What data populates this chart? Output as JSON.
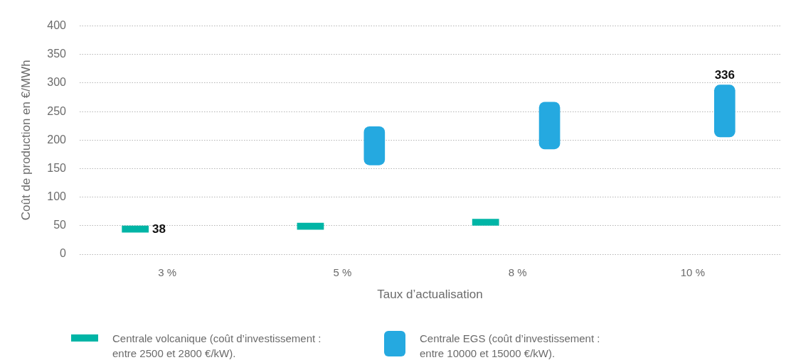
{
  "chart_data": {
    "type": "bar",
    "categories": [
      "3 %",
      "5 %",
      "8 %",
      "10 %"
    ],
    "xlabel": "Taux d’actualisation",
    "ylabel": "Coût de production en €/MWh",
    "ylim": [
      0,
      400
    ],
    "yticks": [
      0,
      50,
      100,
      150,
      200,
      250,
      300,
      350,
      400
    ],
    "grid": "y",
    "legend": "bottom",
    "series": [
      {
        "name": "Centrale volcanique (coût d’investissement : entre 2500 et 2800 €/kW).",
        "color": "#00b5a6",
        "base": [
          38,
          43,
          50,
          null
        ],
        "values": [
          12,
          12,
          12,
          null
        ]
      },
      {
        "name": "Centrale EGS (coût d’investissement : entre 10000 et 15000 €/kW).",
        "color": "#25a9e0",
        "base": [
          null,
          156,
          184,
          205
        ],
        "values": [
          null,
          68,
          83,
          92
        ]
      }
    ],
    "annotations": [
      "38",
      "336"
    ]
  }
}
